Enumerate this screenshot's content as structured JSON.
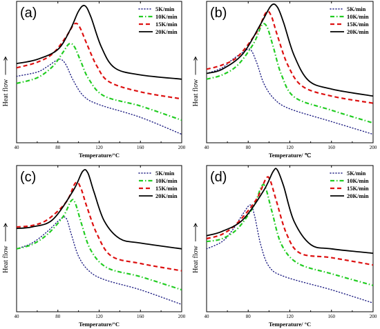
{
  "colors": {
    "5K/min": "#1a1a80",
    "10K/min": "#22cc22",
    "15K/min": "#dd1111",
    "20K/min": "#000000"
  },
  "chart_data": [
    {
      "type": "line",
      "panel_label": "(a)",
      "xlabel": "Temperature/°C",
      "ylabel": "Heat flow",
      "ylabel_arrow": "up",
      "xlim": [
        40,
        200
      ],
      "ylim": [
        0,
        100
      ],
      "xticks": [
        40,
        80,
        120,
        160,
        200
      ],
      "legend": "top-right",
      "grid": false,
      "series": [
        {
          "name": "5K/min",
          "style": "dotted",
          "x": [
            40,
            60,
            70,
            78,
            83,
            88,
            95,
            105,
            120,
            160,
            200
          ],
          "y": [
            47,
            50,
            54,
            58,
            59,
            55,
            44,
            33,
            27,
            18,
            6
          ]
        },
        {
          "name": "10K/min",
          "style": "dashdot",
          "x": [
            40,
            60,
            75,
            85,
            91,
            96,
            102,
            110,
            125,
            160,
            200
          ],
          "y": [
            42,
            46,
            54,
            64,
            70,
            68,
            58,
            45,
            33,
            26,
            16
          ]
        },
        {
          "name": "15K/min",
          "style": "dashed",
          "x": [
            40,
            60,
            75,
            88,
            96,
            101,
            108,
            118,
            130,
            160,
            200
          ],
          "y": [
            53,
            57,
            63,
            75,
            84,
            82,
            70,
            54,
            43,
            36,
            31
          ]
        },
        {
          "name": "20K/min",
          "style": "solid",
          "x": [
            40,
            60,
            80,
            92,
            100,
            106,
            112,
            122,
            135,
            160,
            200
          ],
          "y": [
            56,
            59,
            66,
            80,
            93,
            97,
            89,
            68,
            53,
            48,
            45
          ]
        }
      ]
    },
    {
      "type": "line",
      "panel_label": "(b)",
      "xlabel": "Temperature/ ℃",
      "ylabel": "Heat flow",
      "ylabel_arrow": "up",
      "xlim": [
        40,
        200
      ],
      "ylim": [
        0,
        100
      ],
      "xticks": [
        40,
        80,
        120,
        160,
        200
      ],
      "legend": "top-right",
      "grid": false,
      "series": [
        {
          "name": "5K/min",
          "style": "dotted",
          "x": [
            40,
            55,
            65,
            75,
            82,
            88,
            95,
            105,
            120,
            160,
            200
          ],
          "y": [
            49,
            53,
            59,
            64,
            66,
            57,
            42,
            31,
            24,
            15,
            6
          ]
        },
        {
          "name": "10K/min",
          "style": "dashdot",
          "x": [
            40,
            55,
            70,
            85,
            93,
            98,
            104,
            112,
            125,
            160,
            200
          ],
          "y": [
            45,
            48,
            55,
            70,
            83,
            82,
            68,
            48,
            32,
            23,
            14
          ]
        },
        {
          "name": "15K/min",
          "style": "dashed",
          "x": [
            40,
            55,
            70,
            88,
            97,
            102,
            108,
            118,
            132,
            160,
            200
          ],
          "y": [
            52,
            55,
            61,
            78,
            92,
            90,
            76,
            55,
            40,
            33,
            28
          ]
        },
        {
          "name": "20K/min",
          "style": "solid",
          "x": [
            40,
            55,
            75,
            92,
            102,
            108,
            114,
            124,
            138,
            160,
            200
          ],
          "y": [
            49,
            52,
            63,
            84,
            97,
            96,
            85,
            62,
            44,
            38,
            33
          ]
        }
      ]
    },
    {
      "type": "line",
      "panel_label": "(c)",
      "xlabel": "Temperature/°C",
      "ylabel": "Heat flow",
      "ylabel_arrow": "up",
      "xlim": [
        40,
        200
      ],
      "ylim": [
        0,
        100
      ],
      "xticks": [
        40,
        80,
        120,
        160,
        200
      ],
      "legend": "top-right",
      "grid": false,
      "series": [
        {
          "name": "5K/min",
          "style": "dotted",
          "x": [
            40,
            55,
            70,
            82,
            88,
            93,
            100,
            110,
            125,
            160,
            200
          ],
          "y": [
            43,
            47,
            55,
            63,
            64,
            53,
            38,
            28,
            22,
            15,
            5
          ]
        },
        {
          "name": "10K/min",
          "style": "dashdot",
          "x": [
            40,
            55,
            70,
            85,
            93,
            97,
            103,
            112,
            128,
            160,
            200
          ],
          "y": [
            43,
            46,
            53,
            65,
            76,
            74,
            60,
            42,
            30,
            24,
            15
          ]
        },
        {
          "name": "15K/min",
          "style": "dashed",
          "x": [
            40,
            55,
            70,
            88,
            97,
            102,
            108,
            118,
            132,
            160,
            200
          ],
          "y": [
            58,
            59,
            63,
            75,
            88,
            85,
            72,
            53,
            38,
            33,
            28
          ]
        },
        {
          "name": "20K/min",
          "style": "solid",
          "x": [
            40,
            55,
            75,
            95,
            104,
            109,
            115,
            125,
            140,
            160,
            200
          ],
          "y": [
            57,
            58,
            63,
            83,
            96,
            95,
            82,
            62,
            50,
            47,
            43
          ]
        }
      ]
    },
    {
      "type": "line",
      "panel_label": "(d)",
      "xlabel": "Temperature/ °C",
      "ylabel": "Heat flow",
      "ylabel_arrow": "up",
      "xlim": [
        40,
        200
      ],
      "ylim": [
        0,
        100
      ],
      "xticks": [
        40,
        80,
        120,
        160,
        200
      ],
      "legend": "top-right",
      "grid": false,
      "series": [
        {
          "name": "5K/min",
          "style": "dotted",
          "x": [
            40,
            55,
            65,
            75,
            82,
            86,
            92,
            100,
            115,
            160,
            200
          ],
          "y": [
            43,
            48,
            56,
            67,
            73,
            66,
            46,
            31,
            24,
            15,
            6
          ]
        },
        {
          "name": "10K/min",
          "style": "dashdot",
          "x": [
            40,
            55,
            70,
            85,
            93,
            97,
            103,
            112,
            128,
            160,
            200
          ],
          "y": [
            48,
            50,
            57,
            72,
            86,
            84,
            68,
            46,
            33,
            26,
            18
          ]
        },
        {
          "name": "15K/min",
          "style": "dashed",
          "x": [
            40,
            55,
            70,
            88,
            97,
            101,
            107,
            117,
            130,
            160,
            200
          ],
          "y": [
            50,
            53,
            61,
            77,
            91,
            90,
            76,
            53,
            40,
            37,
            32
          ]
        },
        {
          "name": "20K/min",
          "style": "solid",
          "x": [
            40,
            55,
            75,
            95,
            104,
            108,
            114,
            124,
            140,
            160,
            200
          ],
          "y": [
            52,
            55,
            63,
            83,
            96,
            97,
            86,
            62,
            46,
            43,
            40
          ]
        }
      ]
    }
  ]
}
